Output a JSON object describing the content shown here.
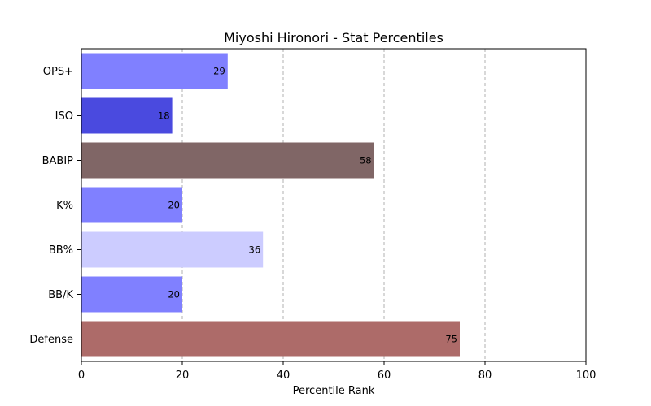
{
  "chart_data": {
    "type": "bar",
    "orientation": "horizontal",
    "title": "Miyoshi Hironori - Stat Percentiles",
    "xlabel": "Percentile Rank",
    "ylabel": "",
    "xlim": [
      0,
      100
    ],
    "xticks": [
      "0",
      "20",
      "40",
      "60",
      "80",
      "100"
    ],
    "grid": "vertical dashed",
    "categories": [
      "OPS+",
      "ISO",
      "BABIP",
      "K%",
      "BB%",
      "BB/K",
      "Defense"
    ],
    "values": [
      29,
      18,
      58,
      20,
      36,
      20,
      75
    ],
    "data_labels": [
      "29",
      "18",
      "58",
      "20",
      "36",
      "20",
      "75"
    ],
    "colors": [
      "#8080ff",
      "#4a4adf",
      "#806666",
      "#8080ff",
      "#ccccff",
      "#8080ff",
      "#ad6b69"
    ]
  }
}
